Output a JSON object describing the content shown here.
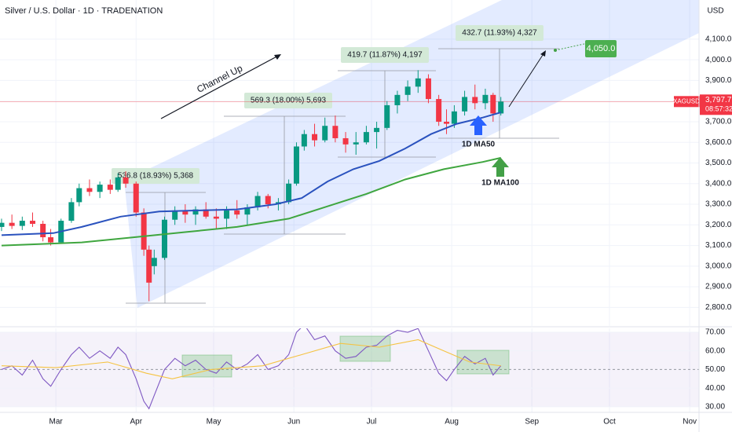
{
  "chart_data": [
    {
      "type": "candlestick",
      "title": "Silver / U.S. Dollar · 1D · TRADENATION",
      "currency": "USD",
      "symbol": "XAGUSD",
      "countdown": "08:57:32",
      "up_color": "#089981",
      "down_color": "#f23645",
      "x": [
        -21,
        -17,
        -13,
        -9,
        -5,
        -2,
        2,
        6,
        9,
        13,
        17,
        21,
        24,
        27,
        31,
        34,
        36,
        38,
        42,
        46,
        50,
        54,
        58,
        62,
        66,
        70,
        74,
        78,
        82,
        86,
        90,
        93,
        96,
        100,
        104,
        108,
        112,
        116,
        120,
        124,
        128,
        132,
        136,
        140,
        144,
        148,
        151,
        154,
        158,
        162,
        166,
        169,
        172
      ],
      "open": [
        3190,
        3210,
        3195,
        3220,
        3205,
        3140,
        3115,
        3220,
        3310,
        3378,
        3360,
        3395,
        3370,
        3430,
        3400,
        3260,
        3080,
        3000,
        3040,
        3225,
        3270,
        3250,
        3275,
        3240,
        3230,
        3270,
        3250,
        3285,
        3340,
        3300,
        3310,
        3400,
        3580,
        3640,
        3610,
        3680,
        3620,
        3590,
        3600,
        3650,
        3670,
        3780,
        3830,
        3870,
        3910,
        3810,
        3700,
        3690,
        3750,
        3820,
        3790,
        3830,
        3740
      ],
      "high": [
        3230,
        3250,
        3240,
        3260,
        3220,
        3180,
        3230,
        3330,
        3400,
        3420,
        3410,
        3420,
        3450,
        3460,
        3410,
        3280,
        3100,
        3080,
        3240,
        3290,
        3300,
        3290,
        3310,
        3280,
        3290,
        3320,
        3300,
        3360,
        3350,
        3330,
        3420,
        3600,
        3660,
        3690,
        3720,
        3730,
        3650,
        3650,
        3680,
        3700,
        3800,
        3850,
        3900,
        3950,
        3930,
        3830,
        3760,
        3780,
        3850,
        3880,
        3860,
        3840,
        3820
      ],
      "low": [
        3170,
        3180,
        3175,
        3190,
        3120,
        3100,
        3110,
        3210,
        3290,
        3340,
        3330,
        3350,
        3360,
        3380,
        3240,
        3050,
        2830,
        2960,
        3030,
        3200,
        3210,
        3200,
        3230,
        3180,
        3180,
        3230,
        3200,
        3270,
        3280,
        3270,
        3300,
        3390,
        3560,
        3580,
        3600,
        3600,
        3550,
        3540,
        3590,
        3570,
        3660,
        3740,
        3800,
        3840,
        3790,
        3680,
        3640,
        3670,
        3730,
        3760,
        3760,
        3700,
        3730
      ],
      "close": [
        3210,
        3195,
        3220,
        3205,
        3140,
        3115,
        3220,
        3310,
        3378,
        3360,
        3395,
        3370,
        3430,
        3400,
        3260,
        3080,
        2920,
        3040,
        3225,
        3270,
        3250,
        3275,
        3240,
        3230,
        3270,
        3250,
        3285,
        3340,
        3300,
        3310,
        3400,
        3580,
        3640,
        3610,
        3680,
        3620,
        3590,
        3600,
        3650,
        3670,
        3780,
        3830,
        3870,
        3910,
        3810,
        3700,
        3690,
        3750,
        3820,
        3790,
        3830,
        3740,
        3797.7
      ],
      "last_price": {
        "value": 3797.7,
        "label": "3,797.7"
      },
      "overlays": [
        {
          "name": "1D MA50",
          "color": "#2a52be",
          "x": [
            -21,
            -1,
            10,
            25,
            40,
            55,
            70,
            85,
            95,
            105,
            115,
            125,
            135,
            145,
            155,
            165,
            172
          ],
          "values": [
            3150,
            3160,
            3190,
            3240,
            3265,
            3270,
            3275,
            3300,
            3330,
            3410,
            3470,
            3510,
            3570,
            3640,
            3690,
            3720,
            3745
          ]
        },
        {
          "name": "1D MA100",
          "color": "#3fa63f",
          "x": [
            -21,
            10,
            30,
            50,
            70,
            90,
            105,
            120,
            135,
            150,
            165,
            172
          ],
          "values": [
            3100,
            3115,
            3140,
            3165,
            3190,
            3230,
            3290,
            3350,
            3420,
            3470,
            3505,
            3525
          ]
        }
      ],
      "measures": [
        "536.8 (18.93%) 5,368",
        "569.3 (18.00%) 5,693",
        "419.7 (11.87%) 4,197",
        "432.7 (11.93%) 4,327"
      ],
      "annotation": "Channel Up",
      "target": {
        "value": 4050,
        "label": "4,050.0"
      },
      "xlim": [
        -21.6,
        248.6
      ],
      "xticks": [
        {
          "value": 0,
          "label": "Mar"
        },
        {
          "value": 31,
          "label": "Apr"
        },
        {
          "value": 61,
          "label": "May"
        },
        {
          "value": 92,
          "label": "Jun"
        },
        {
          "value": 122,
          "label": "Jul"
        },
        {
          "value": 153,
          "label": "Aug"
        },
        {
          "value": 184,
          "label": "Sep"
        },
        {
          "value": 214,
          "label": "Oct"
        },
        {
          "value": 245,
          "label": "Nov"
        }
      ],
      "ylim": [
        2710,
        4290
      ],
      "yticks": [
        {
          "value": 2800,
          "label": "2,800.0"
        },
        {
          "value": 2900,
          "label": "2,900.0"
        },
        {
          "value": 3000,
          "label": "3,000.0"
        },
        {
          "value": 3100,
          "label": "3,100.0"
        },
        {
          "value": 3200,
          "label": "3,200.0"
        },
        {
          "value": 3300,
          "label": "3,300.0"
        },
        {
          "value": 3400,
          "label": "3,400.0"
        },
        {
          "value": 3500,
          "label": "3,500.0"
        },
        {
          "value": 3600,
          "label": "3,600.0"
        },
        {
          "value": 3700,
          "label": "3,700.0"
        },
        {
          "value": 3800,
          "label": "3,800.0"
        },
        {
          "value": 3900,
          "label": "3,900.0"
        },
        {
          "value": 4000,
          "label": "4,000.0"
        },
        {
          "value": 4100,
          "label": "4,100.0"
        }
      ],
      "grid": true
    },
    {
      "type": "line",
      "x": [
        -21,
        -17,
        -13,
        -9,
        -5,
        -2,
        2,
        6,
        9,
        13,
        17,
        21,
        24,
        27,
        31,
        34,
        36,
        38,
        42,
        46,
        50,
        54,
        58,
        62,
        66,
        70,
        74,
        78,
        82,
        86,
        90,
        93,
        96,
        100,
        104,
        108,
        112,
        116,
        120,
        124,
        128,
        132,
        136,
        140,
        144,
        148,
        151,
        154,
        158,
        162,
        166,
        169,
        172
      ],
      "series": [
        {
          "color": "#7e57c2",
          "values": [
            50,
            52,
            47,
            55,
            45,
            41,
            50,
            58,
            62,
            56,
            60,
            56,
            62,
            58,
            45,
            33,
            29,
            36,
            50,
            56,
            52,
            55,
            50,
            48,
            54,
            50,
            53,
            58,
            50,
            52,
            58,
            70,
            74,
            66,
            68,
            60,
            56,
            57,
            62,
            63,
            68,
            71,
            70,
            72,
            60,
            48,
            44,
            50,
            57,
            53,
            56,
            47,
            52
          ]
        },
        {
          "color": "#f5c342",
          "x": [
            -21,
            0,
            20,
            35,
            45,
            60,
            80,
            95,
            110,
            125,
            140,
            150,
            160,
            172
          ],
          "values": [
            52,
            51,
            54,
            48,
            45,
            50,
            52,
            58,
            64,
            62,
            66,
            60,
            54,
            52
          ]
        }
      ],
      "ylim": [
        27,
        72.1
      ],
      "yticks": [
        {
          "value": 30,
          "label": "30.00"
        },
        {
          "value": 40,
          "label": "40.00"
        },
        {
          "value": 50,
          "label": "50.00"
        },
        {
          "value": 60,
          "label": "60.00"
        },
        {
          "value": 70,
          "label": "70.00"
        }
      ]
    }
  ]
}
